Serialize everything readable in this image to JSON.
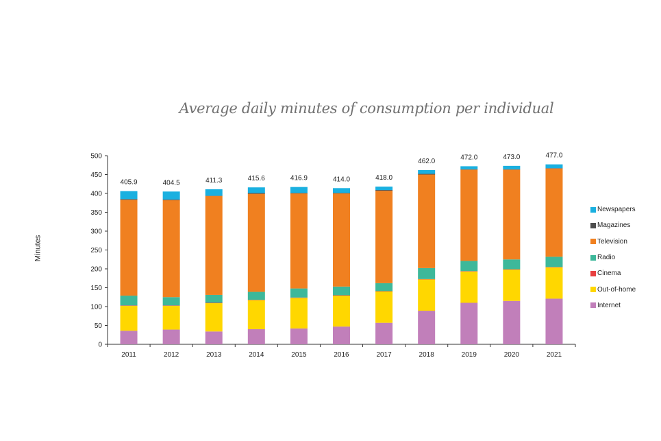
{
  "chart_data": {
    "type": "bar",
    "stacked": true,
    "title": "Average daily minutes of consumption per individual",
    "ylabel": "Minutes",
    "xlabel": "",
    "ylim": [
      0,
      500
    ],
    "yticks": [
      0,
      50,
      100,
      150,
      200,
      250,
      300,
      350,
      400,
      450,
      500
    ],
    "grid": false,
    "legend_position": "right",
    "categories": [
      "2011",
      "2012",
      "2013",
      "2014",
      "2015",
      "2016",
      "2017",
      "2018",
      "2019",
      "2020",
      "2021"
    ],
    "totals": [
      "405.9",
      "404.5",
      "411.3",
      "415.6",
      "416.9",
      "414.0",
      "418.0",
      "462.0",
      "472.0",
      "473.0",
      "477.0"
    ],
    "series": [
      {
        "name": "Internet",
        "color": "#c17fba",
        "values": [
          36,
          39,
          34,
          40,
          42,
          47,
          57,
          89,
          110,
          115,
          121
        ]
      },
      {
        "name": "Out-of-home",
        "color": "#ffd700",
        "values": [
          66,
          63,
          75,
          77,
          81,
          82,
          83,
          83,
          83,
          83,
          83
        ]
      },
      {
        "name": "Cinema",
        "color": "#e84040",
        "values": [
          1,
          1,
          1,
          1,
          1,
          1,
          1,
          1,
          1,
          1,
          1
        ]
      },
      {
        "name": "Radio",
        "color": "#3db89a",
        "values": [
          26,
          22,
          21,
          21,
          24,
          23,
          21,
          29,
          27,
          26,
          27
        ]
      },
      {
        "name": "Television",
        "color": "#f08020",
        "values": [
          254,
          257,
          262,
          260,
          252,
          247,
          245,
          248,
          242,
          238,
          234
        ]
      },
      {
        "name": "Magazines",
        "color": "#4d4d4d",
        "values": [
          2,
          2,
          1,
          2,
          1,
          1,
          2,
          2,
          1,
          1,
          1
        ]
      },
      {
        "name": "Newspapers",
        "color": "#1ab0e0",
        "values": [
          21,
          21,
          17,
          15,
          16,
          13,
          9,
          10,
          8,
          9,
          10
        ]
      }
    ]
  }
}
